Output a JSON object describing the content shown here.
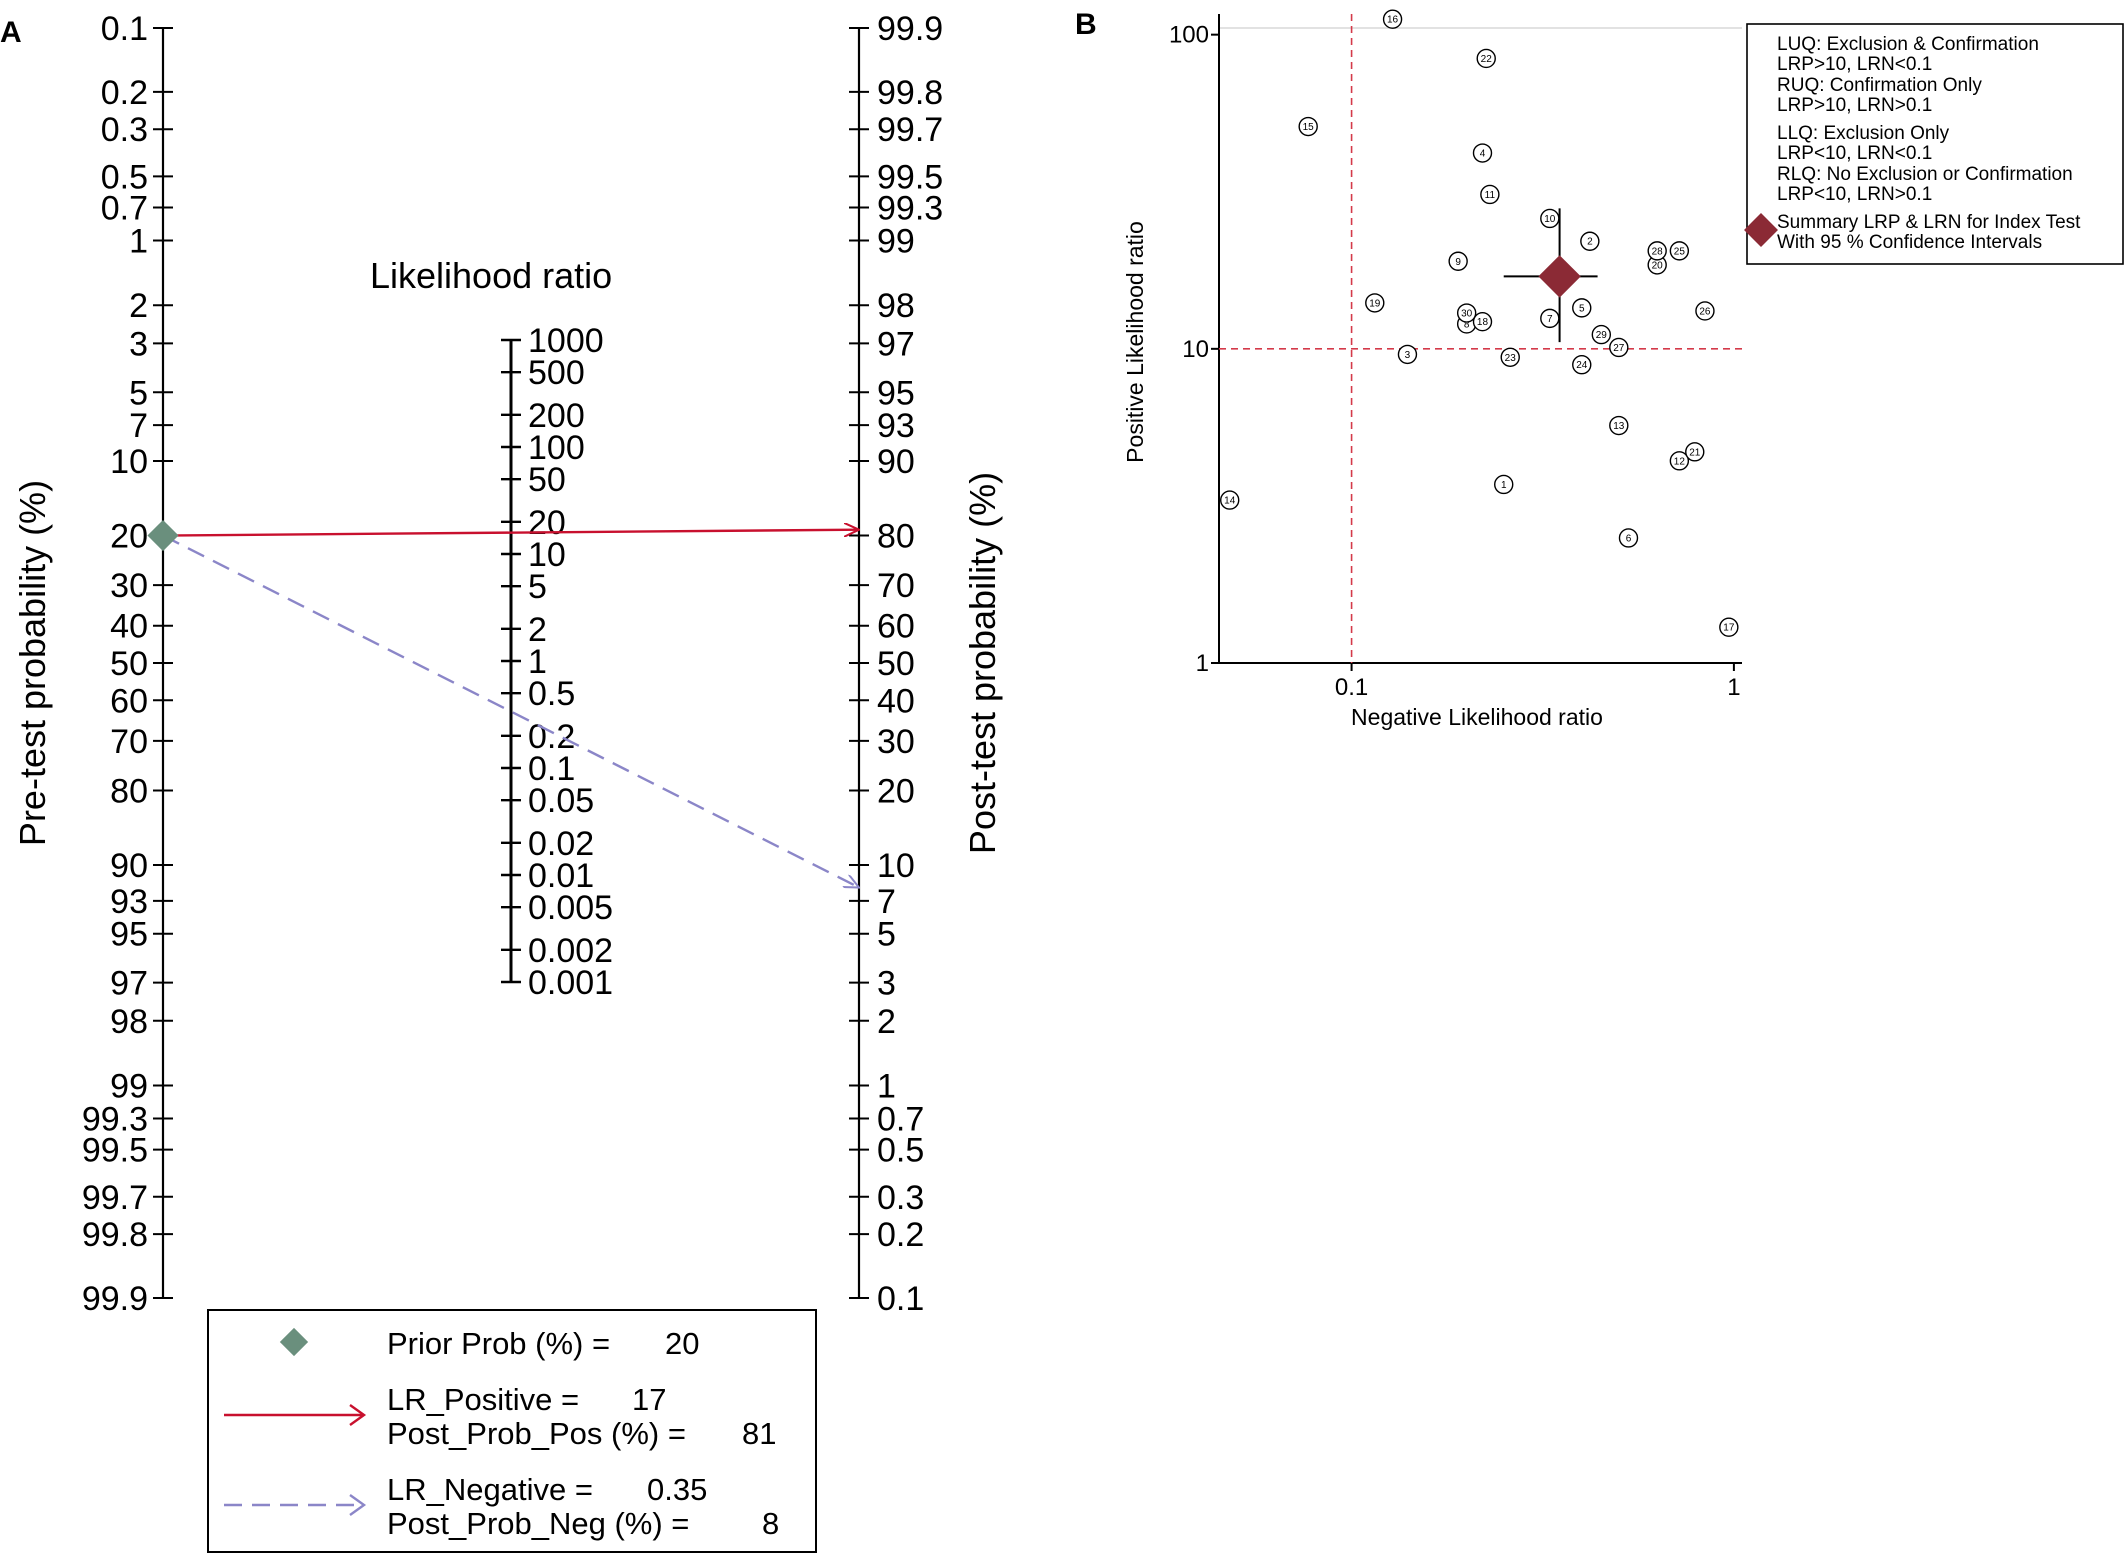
{
  "panel_a": {
    "letter": "A",
    "left_axis_title": "Pre-test probability (%)",
    "right_axis_title": "Post-test probability (%)",
    "center_axis_title": "Likelihood ratio",
    "pre_ticks": [
      "0.1",
      "0.2",
      "0.3",
      "0.5",
      "0.7",
      "1",
      "2",
      "3",
      "5",
      "7",
      "10",
      "20",
      "30",
      "40",
      "50",
      "60",
      "70",
      "80",
      "90",
      "93",
      "95",
      "97",
      "98",
      "99",
      "99.3",
      "99.5",
      "99.7",
      "99.8",
      "99.9"
    ],
    "post_ticks": [
      "99.9",
      "99.8",
      "99.7",
      "99.5",
      "99.3",
      "99",
      "98",
      "97",
      "95",
      "93",
      "90",
      "80",
      "70",
      "60",
      "50",
      "40",
      "30",
      "20",
      "10",
      "7",
      "5",
      "3",
      "2",
      "1",
      "0.7",
      "0.5",
      "0.3",
      "0.2",
      "0.1"
    ],
    "lr_ticks": [
      "1000",
      "500",
      "200",
      "100",
      "50",
      "20",
      "10",
      "5",
      "2",
      "1",
      "0.5",
      "0.2",
      "0.1",
      "0.05",
      "0.02",
      "0.01",
      "0.005",
      "0.002",
      "0.001"
    ],
    "legend": {
      "prior_label": "Prior Prob (%) =",
      "prior_value": "20",
      "lr_pos_label": "LR_Positive =",
      "lr_pos_value": "17",
      "post_pos_label": "Post_Prob_Pos (%) =",
      "post_pos_value": "81",
      "lr_neg_label": "LR_Negative =",
      "lr_neg_value": "0.35",
      "post_neg_label": "Post_Prob_Neg (%) =",
      "post_neg_value": "8"
    },
    "colors": {
      "prior": "#6a8f7d",
      "positive": "#c8102e",
      "negative": "#8b86c8"
    }
  },
  "panel_b": {
    "letter": "B",
    "x_label": "Negative Likelihood ratio",
    "y_label": "Positive Likelihood ratio",
    "x_ticks": [
      "0.1",
      "1"
    ],
    "y_ticks": [
      "100",
      "10",
      "1"
    ],
    "legend": {
      "luq_title": "LUQ: Exclusion & Confirmation",
      "luq_rule": "LRP>10, LRN<0.1",
      "ruq_title": "RUQ: Confirmation Only",
      "ruq_rule": "LRP>10, LRN>0.1",
      "llq_title": "LLQ: Exclusion Only",
      "llq_rule": "LRP<10, LRN<0.1",
      "rlq_title": "RLQ: No Exclusion or Confirmation",
      "rlq_rule": "LRP<10, LRN>0.1",
      "summary_line1": "Summary LRP & LRN for Index Test",
      "summary_line2": "With 95 % Confidence Intervals"
    },
    "colors": {
      "summary": "#8b2a35",
      "threshold": "#d43a4a"
    }
  },
  "chart_data": [
    {
      "type": "line",
      "title": "",
      "xlabel": "Pre-test probability (%)",
      "ylabel": "Post-test probability (%)",
      "prior_prob_pct": 20,
      "series": [
        {
          "name": "LR_Positive",
          "lr": 17,
          "x": 20,
          "y": 81
        },
        {
          "name": "LR_Negative",
          "lr": 0.35,
          "x": 20,
          "y": 8
        }
      ],
      "yscale": "logit",
      "ylim": [
        0.1,
        99.9
      ]
    },
    {
      "type": "scatter",
      "title": "",
      "xlabel": "Negative Likelihood ratio",
      "ylabel": "Positive Likelihood ratio",
      "xscale": "log",
      "yscale": "log",
      "xlim": [
        0.045,
        1.05
      ],
      "ylim": [
        1,
        105
      ],
      "thresholds": {
        "x": 0.1,
        "y": 10
      },
      "points": [
        {
          "label": "1",
          "x": 0.25,
          "y": 3.7
        },
        {
          "label": "2",
          "x": 0.42,
          "y": 22
        },
        {
          "label": "3",
          "x": 0.14,
          "y": 9.6
        },
        {
          "label": "4",
          "x": 0.22,
          "y": 42
        },
        {
          "label": "5",
          "x": 0.4,
          "y": 13.5
        },
        {
          "label": "6",
          "x": 0.53,
          "y": 2.5
        },
        {
          "label": "7",
          "x": 0.33,
          "y": 12.5
        },
        {
          "label": "8",
          "x": 0.2,
          "y": 12
        },
        {
          "label": "9",
          "x": 0.19,
          "y": 19
        },
        {
          "label": "10",
          "x": 0.33,
          "y": 26
        },
        {
          "label": "11",
          "x": 0.23,
          "y": 31
        },
        {
          "label": "12",
          "x": 0.72,
          "y": 4.4
        },
        {
          "label": "13",
          "x": 0.5,
          "y": 5.7
        },
        {
          "label": "14",
          "x": 0.048,
          "y": 3.3
        },
        {
          "label": "15",
          "x": 0.077,
          "y": 51
        },
        {
          "label": "16",
          "x": 0.128,
          "y": 112
        },
        {
          "label": "17",
          "x": 0.97,
          "y": 1.3
        },
        {
          "label": "18",
          "x": 0.22,
          "y": 12.2
        },
        {
          "label": "19",
          "x": 0.115,
          "y": 14
        },
        {
          "label": "20",
          "x": 0.63,
          "y": 18.5
        },
        {
          "label": "21",
          "x": 0.79,
          "y": 4.7
        },
        {
          "label": "22",
          "x": 0.225,
          "y": 84
        },
        {
          "label": "23",
          "x": 0.26,
          "y": 9.4
        },
        {
          "label": "24",
          "x": 0.4,
          "y": 8.9
        },
        {
          "label": "25",
          "x": 0.72,
          "y": 20.5
        },
        {
          "label": "26",
          "x": 0.84,
          "y": 13.2
        },
        {
          "label": "27",
          "x": 0.5,
          "y": 10.1
        },
        {
          "label": "28",
          "x": 0.63,
          "y": 20.5
        },
        {
          "label": "29",
          "x": 0.45,
          "y": 11.1
        },
        {
          "label": "30",
          "x": 0.2,
          "y": 13
        }
      ],
      "summary": {
        "x": 0.35,
        "y": 17,
        "x_ci": [
          0.25,
          0.44
        ],
        "y_ci": [
          10.5,
          28
        ]
      }
    }
  ]
}
